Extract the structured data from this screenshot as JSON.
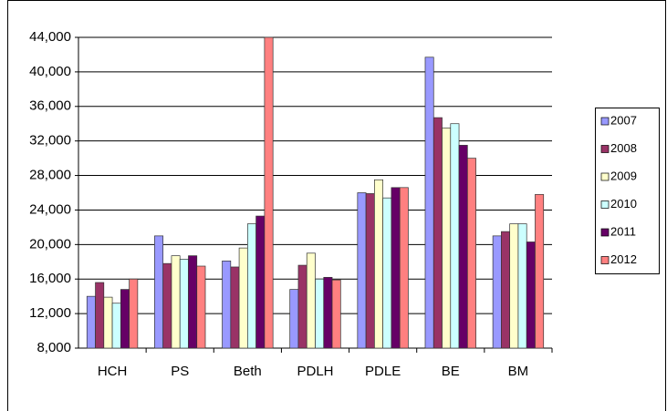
{
  "chart_data": {
    "type": "bar",
    "categories": [
      "HCH",
      "PS",
      "Beth",
      "PDLH",
      "PDLE",
      "BE",
      "BM"
    ],
    "series": [
      {
        "name": "2007",
        "color": "#9999ff",
        "values": [
          14000,
          21000,
          18100,
          14800,
          26000,
          41700,
          21000
        ]
      },
      {
        "name": "2008",
        "color": "#993366",
        "values": [
          15600,
          17800,
          17400,
          17600,
          25900,
          34700,
          21500
        ]
      },
      {
        "name": "2009",
        "color": "#ffffcc",
        "values": [
          13900,
          18700,
          19600,
          19000,
          27500,
          33500,
          22400
        ]
      },
      {
        "name": "2010",
        "color": "#ccffff",
        "values": [
          13200,
          18300,
          22400,
          16000,
          25400,
          34000,
          22400
        ]
      },
      {
        "name": "2011",
        "color": "#660066",
        "values": [
          14800,
          18700,
          23300,
          16200,
          26600,
          31500,
          20300
        ]
      },
      {
        "name": "2012",
        "color": "#ff8080",
        "values": [
          16000,
          17500,
          44000,
          15900,
          26600,
          30000,
          25800
        ]
      }
    ],
    "ylim": [
      8000,
      44000
    ],
    "yticks": [
      {
        "value": 8000,
        "label": "8,000"
      },
      {
        "value": 12000,
        "label": "12,000"
      },
      {
        "value": 16000,
        "label": "16,000"
      },
      {
        "value": 20000,
        "label": "20,000"
      },
      {
        "value": 24000,
        "label": "24,000"
      },
      {
        "value": 28000,
        "label": "28,000"
      },
      {
        "value": 32000,
        "label": "32,000"
      },
      {
        "value": 36000,
        "label": "36,000"
      },
      {
        "value": 40000,
        "label": "40,000"
      },
      {
        "value": 44000,
        "label": "44,000"
      }
    ],
    "grid": true,
    "legend": "right"
  }
}
